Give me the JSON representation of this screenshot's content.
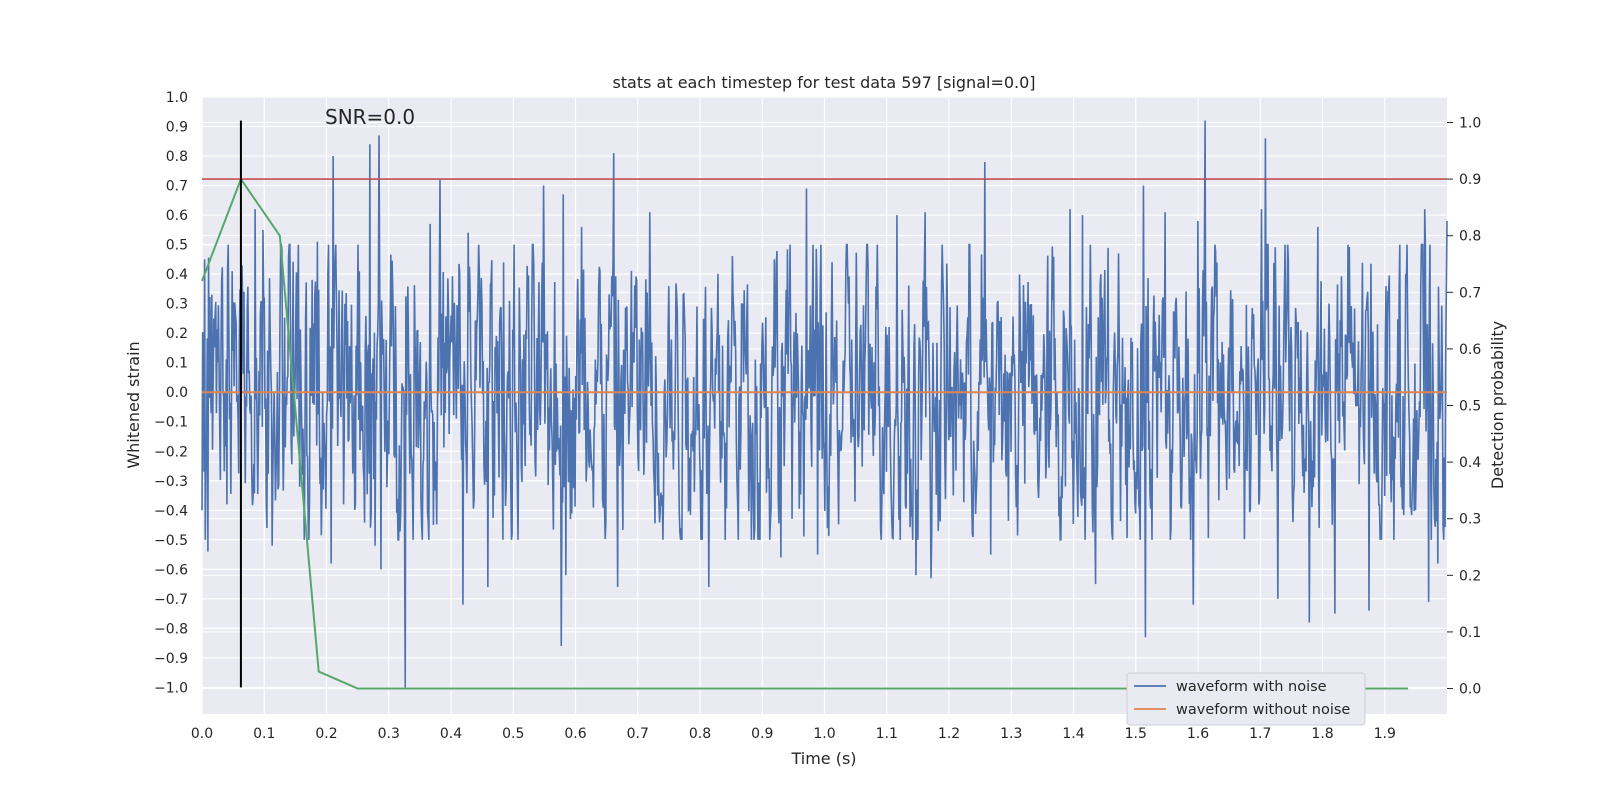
{
  "chart_data": {
    "type": "line",
    "title": "stats at each timestep for test data 597 [signal=0.0]",
    "xlabel": "Time (s)",
    "ylabel": "Whitened strain",
    "y2label": "Detection probability",
    "annotation": "SNR=0.0",
    "xlim": [
      0.0,
      2.0
    ],
    "ylim": [
      -1.09,
      1.0
    ],
    "y2lim": [
      -0.045,
      1.045
    ],
    "x_ticks": [
      "0.0",
      "0.1",
      "0.2",
      "0.3",
      "0.4",
      "0.5",
      "0.6",
      "0.7",
      "0.8",
      "0.9",
      "1.0",
      "1.1",
      "1.2",
      "1.3",
      "1.4",
      "1.5",
      "1.6",
      "1.7",
      "1.8",
      "1.9"
    ],
    "y_ticks": [
      "1.0",
      "0.9",
      "0.8",
      "0.7",
      "0.6",
      "0.5",
      "0.4",
      "0.3",
      "0.2",
      "0.1",
      "0.0",
      "−0.1",
      "−0.2",
      "−0.3",
      "−0.4",
      "−0.5",
      "−0.6",
      "−0.7",
      "−0.8",
      "−0.9",
      "−1.0"
    ],
    "y2_ticks": [
      "1.0",
      "0.9",
      "0.8",
      "0.7",
      "0.6",
      "0.5",
      "0.4",
      "0.3",
      "0.2",
      "0.1",
      "0.0"
    ],
    "grid": true,
    "legend_position": "lower-right",
    "colors": {
      "noisy": "#4c72b0",
      "clean": "#dd8452",
      "probability": "#55a868",
      "threshold": "#c44e52",
      "marker": "#000000",
      "background": "#eaeaf2",
      "grid": "#ffffff"
    },
    "series": [
      {
        "name": "waveform with noise",
        "axis": "left",
        "x": [
          0.0,
          0.004,
          0.01,
          0.016,
          0.04,
          0.064,
          0.085,
          0.098,
          0.113,
          0.128,
          0.161,
          0.185,
          0.207,
          0.211,
          0.228,
          0.27,
          0.278,
          0.284,
          0.288,
          0.327,
          0.366,
          0.382,
          0.419,
          0.428,
          0.459,
          0.484,
          0.549,
          0.577,
          0.58,
          0.584,
          0.61,
          0.661,
          0.668,
          0.719,
          0.814,
          0.93,
          0.971,
          0.989,
          1.116,
          1.147,
          1.162,
          1.171,
          1.258,
          1.267,
          1.394,
          1.414,
          1.435,
          1.444,
          1.512,
          1.516,
          1.547,
          1.592,
          1.6,
          1.611,
          1.702,
          1.708,
          1.728,
          1.779,
          1.793,
          1.82,
          1.875,
          1.964,
          1.97,
          1.985,
          2.0
        ],
        "values": [
          -0.4,
          0.45,
          -0.54,
          0.33,
          -0.38,
          0.43,
          0.62,
          0.55,
          -0.52,
          0.48,
          -0.28,
          0.51,
          -0.58,
          0.8,
          -0.38,
          0.84,
          -0.52,
          0.87,
          -0.6,
          -1.0,
          0.57,
          0.72,
          -0.72,
          0.54,
          -0.66,
          0.44,
          0.7,
          -0.86,
          0.67,
          -0.62,
          0.56,
          0.81,
          -0.66,
          0.61,
          -0.66,
          -0.56,
          0.69,
          -0.55,
          0.6,
          -0.62,
          0.61,
          -0.63,
          0.78,
          -0.55,
          0.62,
          0.6,
          -0.65,
          0.4,
          0.7,
          -0.83,
          0.61,
          -0.72,
          0.58,
          0.92,
          0.62,
          0.86,
          -0.7,
          -0.78,
          0.56,
          -0.75,
          -0.74,
          0.62,
          -0.71,
          -0.58,
          0.58
        ]
      },
      {
        "name": "waveform without noise",
        "axis": "left",
        "x": [
          0.0,
          2.0
        ],
        "values": [
          0.0,
          0.0
        ]
      },
      {
        "name": "",
        "axis": "right",
        "x": [
          0.0,
          0.0625,
          0.125,
          0.1875,
          0.25,
          0.3125,
          1.9375
        ],
        "values": [
          0.72,
          0.9,
          0.8,
          0.03,
          0.0,
          0.0,
          0.0
        ]
      }
    ],
    "threshold": {
      "axis": "right",
      "value": 0.9
    },
    "marker": {
      "x": 0.0625,
      "y_range": [
        -1.0,
        0.92
      ]
    }
  }
}
